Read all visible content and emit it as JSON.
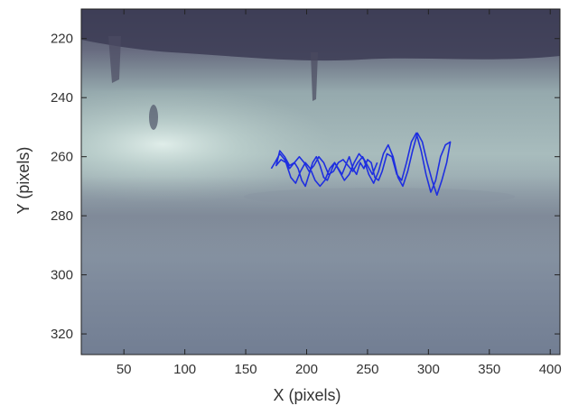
{
  "chart_data": {
    "type": "line",
    "title": "",
    "xlabel": "X (pixels)",
    "ylabel": "Y (pixels)",
    "xlim": [
      15,
      408
    ],
    "ylim": [
      210,
      327
    ],
    "y_reversed": true,
    "grid": false,
    "background": "image-frame",
    "xticks": [
      50,
      100,
      150,
      200,
      250,
      300,
      350,
      400
    ],
    "xtick_labels": [
      "50",
      "100",
      "150",
      "200",
      "250",
      "300",
      "350",
      "400"
    ],
    "yticks": [
      220,
      240,
      260,
      280,
      300,
      320
    ],
    "ytick_labels": [
      "220",
      "240",
      "260",
      "280",
      "300",
      "320"
    ],
    "series": [
      {
        "color": "#1f2fe0",
        "x": [
          171,
          174,
          178,
          182,
          186,
          190,
          193,
          196,
          199,
          202,
          205,
          208,
          211,
          214,
          217,
          220,
          223,
          226,
          229,
          232,
          235,
          238,
          241,
          244,
          247,
          250,
          253,
          256,
          259,
          262,
          266,
          270,
          274,
          278,
          282,
          286,
          290,
          294,
          298,
          302,
          306,
          310,
          314,
          318,
          315,
          311,
          307,
          303,
          299,
          295,
          291,
          287,
          283,
          279,
          275,
          271,
          267,
          263,
          259,
          255,
          251,
          247,
          243,
          239,
          235,
          231,
          227,
          223,
          219,
          215,
          211,
          207,
          203,
          199,
          195,
          191,
          187,
          183,
          179,
          175,
          178,
          182,
          186,
          190,
          194,
          198,
          202,
          206,
          210,
          214,
          218,
          222,
          226,
          230,
          234,
          238,
          242,
          246,
          250,
          254,
          258
        ],
        "y": [
          264,
          262,
          259,
          261,
          264,
          262,
          264,
          268,
          270,
          266,
          262,
          260,
          263,
          267,
          268,
          265,
          262,
          264,
          266,
          263,
          260,
          264,
          266,
          262,
          264,
          261,
          262,
          267,
          268,
          265,
          259,
          260,
          266,
          268,
          262,
          255,
          252,
          258,
          266,
          272,
          268,
          260,
          256,
          255,
          262,
          268,
          273,
          268,
          262,
          255,
          252,
          258,
          265,
          270,
          267,
          260,
          256,
          259,
          265,
          269,
          266,
          261,
          259,
          262,
          266,
          268,
          265,
          262,
          264,
          268,
          270,
          268,
          264,
          262,
          265,
          269,
          267,
          262,
          261,
          263,
          258,
          260,
          263,
          262,
          260,
          262,
          265,
          263,
          260,
          262,
          266,
          265,
          262,
          261,
          263,
          265,
          262,
          260,
          263,
          266,
          262
        ]
      }
    ]
  }
}
